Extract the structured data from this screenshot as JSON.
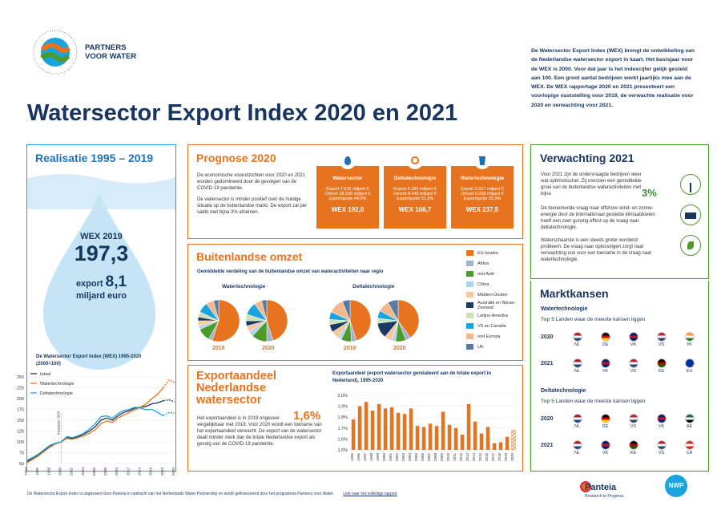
{
  "logo": {
    "circle_text": "GLOBAL IMPACT · PARTNERS VOOR WATER",
    "brand_line1": "PARTNERS",
    "brand_line2": "VOOR WATER"
  },
  "title": "Watersector Export Index 2020 en 2021",
  "intro": "De Watersector Export Index (WEX) brengt de ontwikkeling van de Nederlandse watersector export in kaart. Het basisjaar voor de WEX is 2000. Voor dat jaar is het indexcijfer gelijk gesteld aan 100. Een groot aantal bedrijven werkt jaarlijks mee aan de WEX. De WEX rapportage 2020 en 2021 presenteert een voorlopige vaststelling voor 2019, de verwachte realisatie voor 2020 en verwachting voor 2021.",
  "realisatie": {
    "heading": "Realisatie 1995 – 2019",
    "wex_label": "WEX 2019",
    "wex_value": "197,3",
    "export_label": "export",
    "export_value": "8,1",
    "export_unit": "miljard euro"
  },
  "prognose": {
    "heading": "Prognose 2020",
    "text1": "De economische vooruitzichten voor 2020 en 2021 worden gedomineerd door de gevolgen van de COVID-19 pandemie.",
    "text2": "De watersector is minder positief over de huidige situatie op de buitenlandse markt. De export zal per saldo met bijna 3% afnemen.",
    "cards": [
      {
        "title": "Watersector",
        "l1": "Export   7.925 miljard €",
        "l2": "Omzet   18.000 miljard €",
        "l3": "Exportquote  44,0%",
        "wex": "WEX 192,0",
        "icon": "water-drop-icon"
      },
      {
        "title": "Deltatechnologie",
        "l1": "Export   4.383 miljard €",
        "l2": "Omzet   8.440 miljard €",
        "l3": "Exportquote  51,9%",
        "wex": "WEX 166,7",
        "icon": "magnifier-waves-icon"
      },
      {
        "title": "Watertechnologie",
        "l1": "Export   3.327 miljard €",
        "l2": "Omzet   9.258 miljard €",
        "l3": "Exportquote  35,9%",
        "wex": "WEX  237,5",
        "icon": "water-glass-icon"
      }
    ]
  },
  "buitenlandse": {
    "heading": "Buitenlandse omzet",
    "subheading": "Gemiddelde verdeling van de buitenlandse omzet van wateractiviteiten naar regio",
    "group1": "Watertechnologie",
    "group2": "Deltatechnologie",
    "year1": "2019",
    "year2": "2020",
    "legend": [
      {
        "label": "EU-landen",
        "color": "#e8731e"
      },
      {
        "label": "Afrika",
        "color": "#9fb4cc"
      },
      {
        "label": "rest Azië",
        "color": "#4c9a2a"
      },
      {
        "label": "China",
        "color": "#a9d7f2"
      },
      {
        "label": "Midden-Oosten",
        "color": "#f7c79e"
      },
      {
        "label": "Australië en Nieuw-Zeeland",
        "color": "#1a3a63"
      },
      {
        "label": "Latijns-Amerika",
        "color": "#c8e3b0"
      },
      {
        "label": "VS en Canada",
        "color": "#1aa3dd"
      },
      {
        "label": "rest Europa",
        "color": "#f3b98c"
      },
      {
        "label": "UK",
        "color": "#5a7aa6"
      }
    ],
    "pies": [
      [
        55,
        3,
        10,
        3,
        4,
        3,
        4,
        8,
        6,
        4
      ],
      [
        45,
        5,
        12,
        4,
        5,
        4,
        5,
        10,
        6,
        4
      ],
      [
        45,
        4,
        8,
        3,
        6,
        6,
        4,
        6,
        12,
        6
      ],
      [
        40,
        4,
        8,
        3,
        6,
        12,
        4,
        6,
        9,
        8
      ]
    ]
  },
  "exportaandeel": {
    "heading_l1": "Exportaandeel",
    "heading_l2": "Nederlandse",
    "heading_l3": "watersector",
    "text1": "Het exportaandeel is in 2019 ongeveer",
    "big": "1,6%",
    "text2": "vergelijkbaar met 2018. Voor 2020 wordt een toename van het exportaandeel verwacht. De export van de watersector daalt minder sterk dan de totale Nederlandse export als gevolg van de COVID-19 pandemie."
  },
  "verwachting": {
    "heading": "Verwachting 2021",
    "text1": "Voor 2021 zijn de ondervraagde bedrijven weer wat optimistischer. Zij voorzien een gemiddelde groei van de buitenlandse wateractiviteiten met bijna",
    "big": "3%",
    "text2": "De toenemende vraag naar offshore wind- en zonne-energie door de internationaal gestelde klimaatdoelen heeft een zeer gunstig effect op de vraag naar deltatechnologie.",
    "text3": "Waterschaarste is een steeds groter wordend probleem. De vraag naar oplossingen zorgt naar verwachting ook voor een toename in de vraag naar watertechnologie.",
    "icons": [
      "wind-turbine-icon",
      "solar-panel-icon",
      "plant-icon"
    ]
  },
  "marktkansen": {
    "heading": "Marktkansen",
    "sub1": "Watertechnologie",
    "top5": "Top 5",
    "top5_text": "Landen waar de meeste kansen liggen",
    "sub2": "Deltatechnologie",
    "rows1": [
      {
        "year": "2020",
        "countries": [
          "NL",
          "DE",
          "VK",
          "VS",
          "IN"
        ]
      },
      {
        "year": "2021",
        "countries": [
          "NL",
          "VK",
          "VS",
          "KE",
          "EU"
        ]
      }
    ],
    "rows2": [
      {
        "year": "2020",
        "countries": [
          "NL",
          "DE",
          "VS",
          "VK",
          "AE"
        ]
      },
      {
        "year": "2021",
        "countries": [
          "NL",
          "VK",
          "KE",
          "VS",
          "CA"
        ]
      }
    ]
  },
  "footer": {
    "text": "De Watersector Export Index is uitgevoerd door Panteia in opdracht van het Netherlands Water Partnership en wordt gefinancieerd door het programma Partners voor Water.",
    "link": "Link naar het volledige rapport",
    "panteia": "Panteia",
    "panteia_sub": "Research to Progress",
    "nwp": "NWP"
  },
  "chart_data": [
    {
      "type": "line",
      "title": "De Watersector Export Index (WEX) 1995-2020 (2000=100)",
      "annotation": "basisjaar 2000",
      "x": [
        "1994",
        "1995",
        "1996",
        "1997",
        "1998",
        "1999",
        "2000",
        "2001",
        "2002",
        "2003",
        "2004",
        "2005",
        "2006",
        "2007",
        "2008",
        "2009",
        "2010",
        "2011",
        "2012",
        "2013",
        "2014",
        "2015",
        "2016",
        "2017",
        "2018",
        "2019",
        "2020"
      ],
      "yticks": [
        50,
        75,
        100,
        125,
        150,
        175,
        200,
        225,
        250
      ],
      "xticks": [
        "1994",
        "1996",
        "1998",
        "2000",
        "2002",
        "2004",
        "2006",
        "2008",
        "2010",
        "2012",
        "2014",
        "2016",
        "2018",
        "2020"
      ],
      "ylim": [
        50,
        250
      ],
      "series": [
        {
          "name": "totaal",
          "color": "#17355e",
          "values": [
            55,
            62,
            70,
            80,
            90,
            96,
            100,
            110,
            108,
            112,
            118,
            125,
            135,
            150,
            155,
            150,
            160,
            168,
            172,
            178,
            180,
            182,
            188,
            190,
            195,
            197,
            192
          ]
        },
        {
          "name": "Watertechnologie",
          "color": "#e8731e",
          "values": [
            52,
            60,
            68,
            78,
            88,
            95,
            100,
            108,
            106,
            110,
            114,
            120,
            128,
            142,
            148,
            145,
            155,
            162,
            168,
            174,
            180,
            188,
            200,
            210,
            225,
            243,
            237
          ]
        },
        {
          "name": "Deltatechnologie",
          "color": "#1aa3dd",
          "values": [
            58,
            64,
            72,
            82,
            92,
            97,
            100,
            112,
            110,
            114,
            120,
            130,
            142,
            158,
            160,
            155,
            165,
            172,
            175,
            180,
            178,
            174,
            175,
            168,
            160,
            168,
            166
          ]
        }
      ]
    },
    {
      "type": "bar",
      "title": "Exportaandeel (export watersector gerelateerd aan de totale export in Nederland), 1995-2020",
      "categories": [
        "1995",
        "1996",
        "1997",
        "1998",
        "1999",
        "2000",
        "2001",
        "2002",
        "2003",
        "2004",
        "2005",
        "2006",
        "2007",
        "2008",
        "2009",
        "2010",
        "2011",
        "2012",
        "2013",
        "2014",
        "2015",
        "2016",
        "2017",
        "2018",
        "2019",
        "2020"
      ],
      "values": [
        1.78,
        1.9,
        1.94,
        1.86,
        1.92,
        1.88,
        1.89,
        1.84,
        1.83,
        1.88,
        1.72,
        1.71,
        1.74,
        1.72,
        1.85,
        1.73,
        1.7,
        1.64,
        1.92,
        1.76,
        1.65,
        1.71,
        1.56,
        1.57,
        1.62,
        1.68
      ],
      "highlight_last": true,
      "yticks": [
        "1,5%",
        "1,6%",
        "1,7%",
        "1,8%",
        "1,9%",
        "2,0%"
      ],
      "ylim": [
        1.5,
        2.0
      ]
    }
  ]
}
